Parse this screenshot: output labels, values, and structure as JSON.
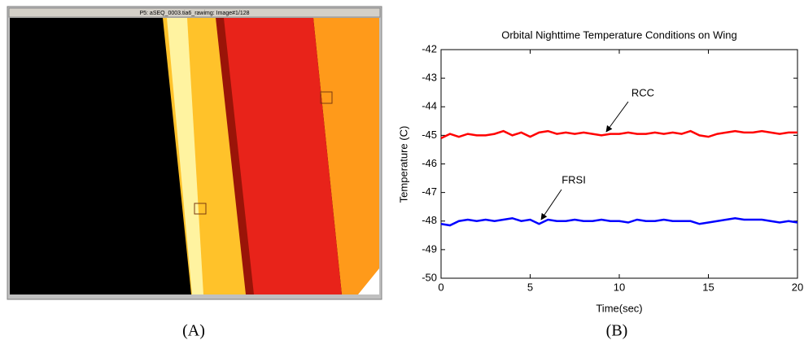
{
  "image_panel": {
    "window_title": "P5: aSEQ_0003.tia6_rawimg: Image#1/128",
    "caption": "(A)"
  },
  "chart_caption": "(B)",
  "chart_data": {
    "type": "line",
    "title": "Orbital Nighttime Temperature Conditions on Wing",
    "x_label": "Time(sec)",
    "y_label": "Temperature (C)",
    "x": [
      0,
      0.5,
      1,
      1.5,
      2,
      2.5,
      3,
      3.5,
      4,
      4.5,
      5,
      5.5,
      6,
      6.5,
      7,
      7.5,
      8,
      8.5,
      9,
      9.5,
      10,
      10.5,
      11,
      11.5,
      12,
      12.5,
      13,
      13.5,
      14,
      14.5,
      15,
      15.5,
      16,
      16.5,
      17,
      17.5,
      18,
      18.5,
      19,
      19.5,
      20
    ],
    "series": [
      {
        "name": "RCC",
        "color": "#ff0000",
        "values": [
          -45.1,
          -44.95,
          -45.05,
          -44.95,
          -45.0,
          -45.0,
          -44.95,
          -44.85,
          -45.0,
          -44.9,
          -45.05,
          -44.9,
          -44.85,
          -44.95,
          -44.9,
          -44.95,
          -44.9,
          -44.95,
          -45.0,
          -44.95,
          -44.95,
          -44.9,
          -44.95,
          -44.95,
          -44.9,
          -44.95,
          -44.9,
          -44.95,
          -44.85,
          -45.0,
          -45.05,
          -44.95,
          -44.9,
          -44.85,
          -44.9,
          -44.9,
          -44.85,
          -44.9,
          -44.95,
          -44.9,
          -44.9
        ]
      },
      {
        "name": "FRSI",
        "color": "#0000ff",
        "values": [
          -48.1,
          -48.15,
          -48.0,
          -47.95,
          -48.0,
          -47.95,
          -48.0,
          -47.95,
          -47.9,
          -48.0,
          -47.95,
          -48.1,
          -47.95,
          -48.0,
          -48.0,
          -47.95,
          -48.0,
          -48.0,
          -47.95,
          -48.0,
          -48.0,
          -48.05,
          -47.95,
          -48.0,
          -48.0,
          -47.95,
          -48.0,
          -48.0,
          -48.0,
          -48.1,
          -48.05,
          -48.0,
          -47.95,
          -47.9,
          -47.95,
          -47.95,
          -47.95,
          -48.0,
          -48.05,
          -48.0,
          -48.05
        ]
      }
    ],
    "xlim": [
      0,
      20
    ],
    "xticks": [
      0,
      5,
      10,
      15,
      20
    ],
    "ylim": [
      -50,
      -42
    ],
    "yticks": [
      -50,
      -49,
      -48,
      -47,
      -46,
      -45,
      -44,
      -43,
      -42
    ],
    "grid": false
  }
}
